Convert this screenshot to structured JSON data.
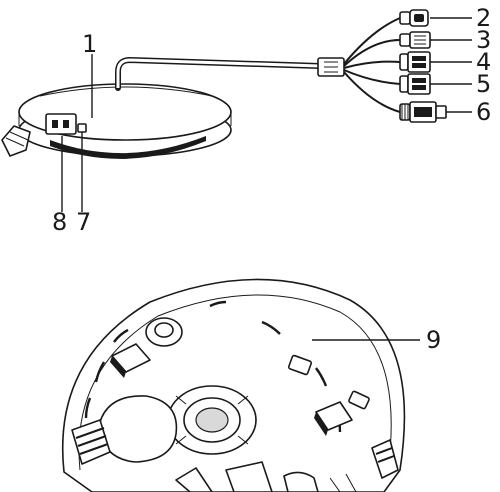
{
  "callouts": {
    "c1": "1",
    "c2": "2",
    "c3": "3",
    "c4": "4",
    "c5": "5",
    "c6": "6",
    "c7": "7",
    "c8": "8",
    "c9": "9"
  }
}
